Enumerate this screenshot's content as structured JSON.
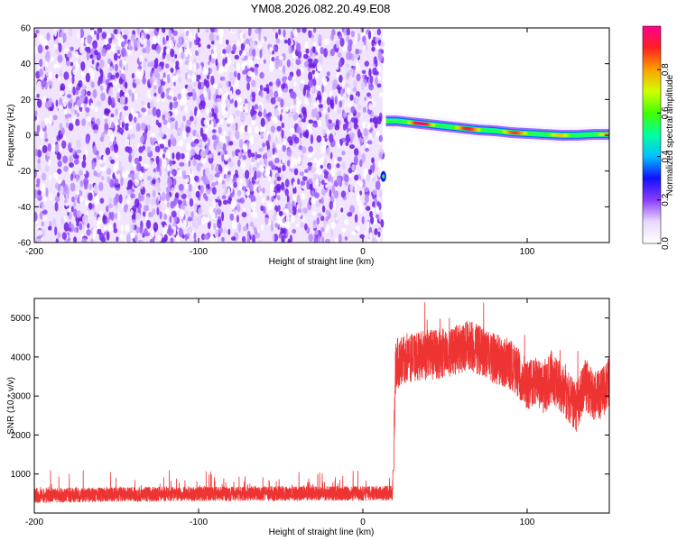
{
  "title": "YM08.2026.082.20.49.E08",
  "chart_data": [
    {
      "type": "heatmap",
      "xlabel": "Height of straight line (km)",
      "ylabel": "Frequency (Hz)",
      "xlim": [
        -200,
        150
      ],
      "ylim": [
        -60,
        60
      ],
      "xticks": [
        -200,
        -100,
        0,
        100
      ],
      "yticks": [
        -60,
        -40,
        -20,
        0,
        20,
        40,
        60
      ],
      "grid": false,
      "regions": [
        {
          "name": "",
          "x_range": [
            -200,
            12
          ],
          "freq_range": [
            -60,
            60
          ],
          "amplitude": "low, broadband scatter (~0.05-0.25)"
        },
        {
          "name": "",
          "x_range": [
            12,
            150
          ],
          "freq_range": [
            0,
            9
          ],
          "amplitude": "high (~0.8-1.0)"
        }
      ],
      "ridge": {
        "x": [
          14,
          20,
          30,
          40,
          50,
          60,
          70,
          80,
          90,
          100,
          110,
          120,
          130,
          140,
          150
        ],
        "freq": [
          8,
          8,
          7,
          6,
          5,
          4,
          3,
          2.5,
          1.5,
          1,
          0.5,
          0,
          0,
          0.5,
          0.5
        ],
        "amplitude": [
          0.8,
          0.95,
          1.0,
          0.95,
          0.9,
          0.92,
          0.9,
          0.85,
          0.88,
          0.9,
          0.85,
          0.75,
          0.7,
          0.75,
          0.8
        ]
      },
      "colorbar": {
        "label": "Normalized spectral amplitude",
        "range": [
          0,
          1
        ],
        "ticks": [
          "0.0",
          "0.2",
          "0.4",
          "0.6",
          "0.8"
        ],
        "colormap": [
          "#ffffff",
          "#e8d8ff",
          "#8a3cff",
          "#1010ff",
          "#00c0ff",
          "#00ffa0",
          "#40ff00",
          "#d0ff00",
          "#ffa000",
          "#ff2020",
          "#ff0090"
        ]
      }
    },
    {
      "type": "line",
      "xlabel": "Height of straight line (km)",
      "ylabel": "SNR (10 * v/v)",
      "xlim": [
        -200,
        150
      ],
      "ylim": [
        0,
        5500
      ],
      "xticks": [
        -200,
        -100,
        0,
        100
      ],
      "yticks": [
        1000,
        2000,
        3000,
        4000,
        5000
      ],
      "grid": false,
      "series": [
        {
          "name": "",
          "color": "#ee3333",
          "x": [
            -200,
            -180,
            -160,
            -140,
            -120,
            -100,
            -80,
            -60,
            -40,
            -20,
            0,
            15,
            18,
            20,
            25,
            30,
            40,
            50,
            60,
            65,
            70,
            80,
            90,
            95,
            100,
            105,
            110,
            115,
            120,
            125,
            130,
            135,
            140,
            145,
            150
          ],
          "y": [
            420,
            440,
            450,
            460,
            470,
            470,
            475,
            480,
            480,
            485,
            485,
            490,
            500,
            3800,
            3950,
            4000,
            4050,
            4100,
            4200,
            4300,
            4200,
            3950,
            3800,
            3600,
            3250,
            3400,
            3150,
            3500,
            3250,
            3000,
            2700,
            3300,
            3050,
            3000,
            3400
          ],
          "noise_range": {
            "before_step": [
              50,
              1100
            ],
            "after_step": [
              1850,
              5400
            ]
          }
        }
      ]
    }
  ]
}
